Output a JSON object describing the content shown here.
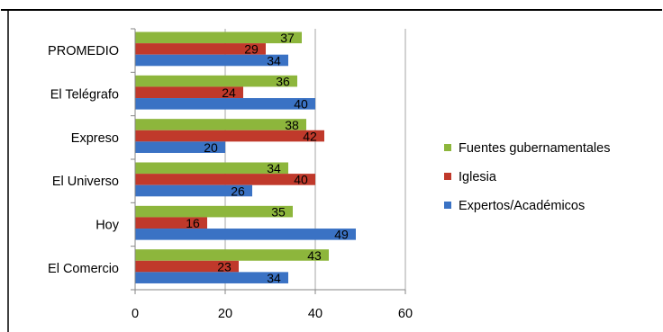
{
  "chart_data": {
    "type": "bar",
    "orientation": "horizontal",
    "categories": [
      "PROMEDIO",
      "El Telégrafo",
      "Expreso",
      "El Universo",
      "Hoy",
      "El Comercio"
    ],
    "series": [
      {
        "name": "Fuentes gubernamentales",
        "color": "#8db63c",
        "values": [
          37,
          36,
          38,
          34,
          35,
          43
        ]
      },
      {
        "name": "Iglesia",
        "color": "#c0392b",
        "values": [
          29,
          24,
          42,
          40,
          16,
          23
        ]
      },
      {
        "name": "Expertos/Académicos",
        "color": "#3a72c4",
        "values": [
          34,
          40,
          20,
          26,
          49,
          34
        ]
      }
    ],
    "xlim": [
      0,
      60
    ],
    "xticks": [
      "0",
      "20",
      "40",
      "60"
    ],
    "grid": "vertical",
    "data_labels": true,
    "legend_position": "right",
    "legend_order": [
      "Fuentes gubernamentales",
      "Iglesia",
      "Expertos/Académicos"
    ]
  }
}
